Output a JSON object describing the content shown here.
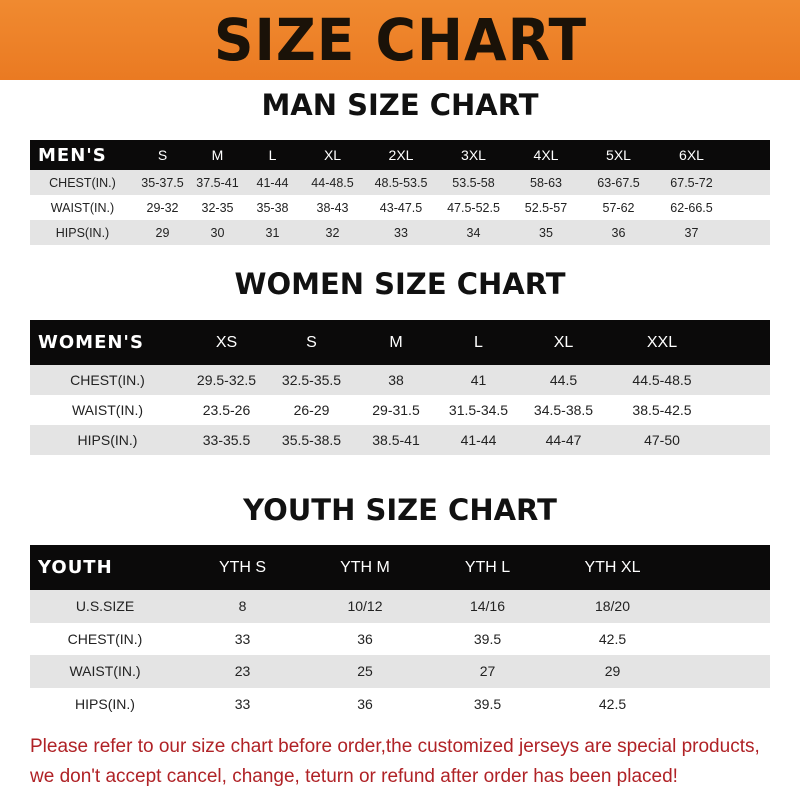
{
  "banner_title": "SIZE CHART",
  "tables": {
    "men": {
      "title": "MAN SIZE CHART",
      "header": [
        "MEN'S",
        "S",
        "M",
        "L",
        "XL",
        "2XL",
        "3XL",
        "4XL",
        "5XL",
        "6XL"
      ],
      "rows": [
        [
          "CHEST(IN.)",
          "35-37.5",
          "37.5-41",
          "41-44",
          "44-48.5",
          "48.5-53.5",
          "53.5-58",
          "58-63",
          "63-67.5",
          "67.5-72"
        ],
        [
          "WAIST(IN.)",
          "29-32",
          "32-35",
          "35-38",
          "38-43",
          "43-47.5",
          "47.5-52.5",
          "52.5-57",
          "57-62",
          "62-66.5"
        ],
        [
          "HIPS(IN.)",
          "29",
          "30",
          "31",
          "32",
          "33",
          "34",
          "35",
          "36",
          "37"
        ]
      ]
    },
    "women": {
      "title": "WOMEN SIZE CHART",
      "header": [
        "WOMEN'S",
        "XS",
        "S",
        "M",
        "L",
        "XL",
        "XXL"
      ],
      "rows": [
        [
          "CHEST(IN.)",
          "29.5-32.5",
          "32.5-35.5",
          "38",
          "41",
          "44.5",
          "44.5-48.5"
        ],
        [
          "WAIST(IN.)",
          "23.5-26",
          "26-29",
          "29-31.5",
          "31.5-34.5",
          "34.5-38.5",
          "38.5-42.5"
        ],
        [
          "HIPS(IN.)",
          "33-35.5",
          "35.5-38.5",
          "38.5-41",
          "41-44",
          "44-47",
          "47-50"
        ]
      ]
    },
    "youth": {
      "title": "YOUTH SIZE CHART",
      "header": [
        "YOUTH",
        "YTH S",
        "YTH M",
        "YTH L",
        "YTH XL"
      ],
      "rows": [
        [
          "U.S.SIZE",
          "8",
          "10/12",
          "14/16",
          "18/20"
        ],
        [
          "CHEST(IN.)",
          "33",
          "36",
          "39.5",
          "42.5"
        ],
        [
          "WAIST(IN.)",
          "23",
          "25",
          "27",
          "29"
        ],
        [
          "HIPS(IN.)",
          "33",
          "36",
          "39.5",
          "42.5"
        ]
      ]
    }
  },
  "footer": {
    "line1": "Please refer to our size chart before order,the customized jerseys are special products,",
    "line2": "we don't accept cancel, change, teturn or refund after order has been placed!"
  },
  "colors": {
    "banner": "#ef832a",
    "header_row": "#0b0a0a",
    "stripe": "#e4e4e4",
    "footer_text": "#b02226"
  }
}
